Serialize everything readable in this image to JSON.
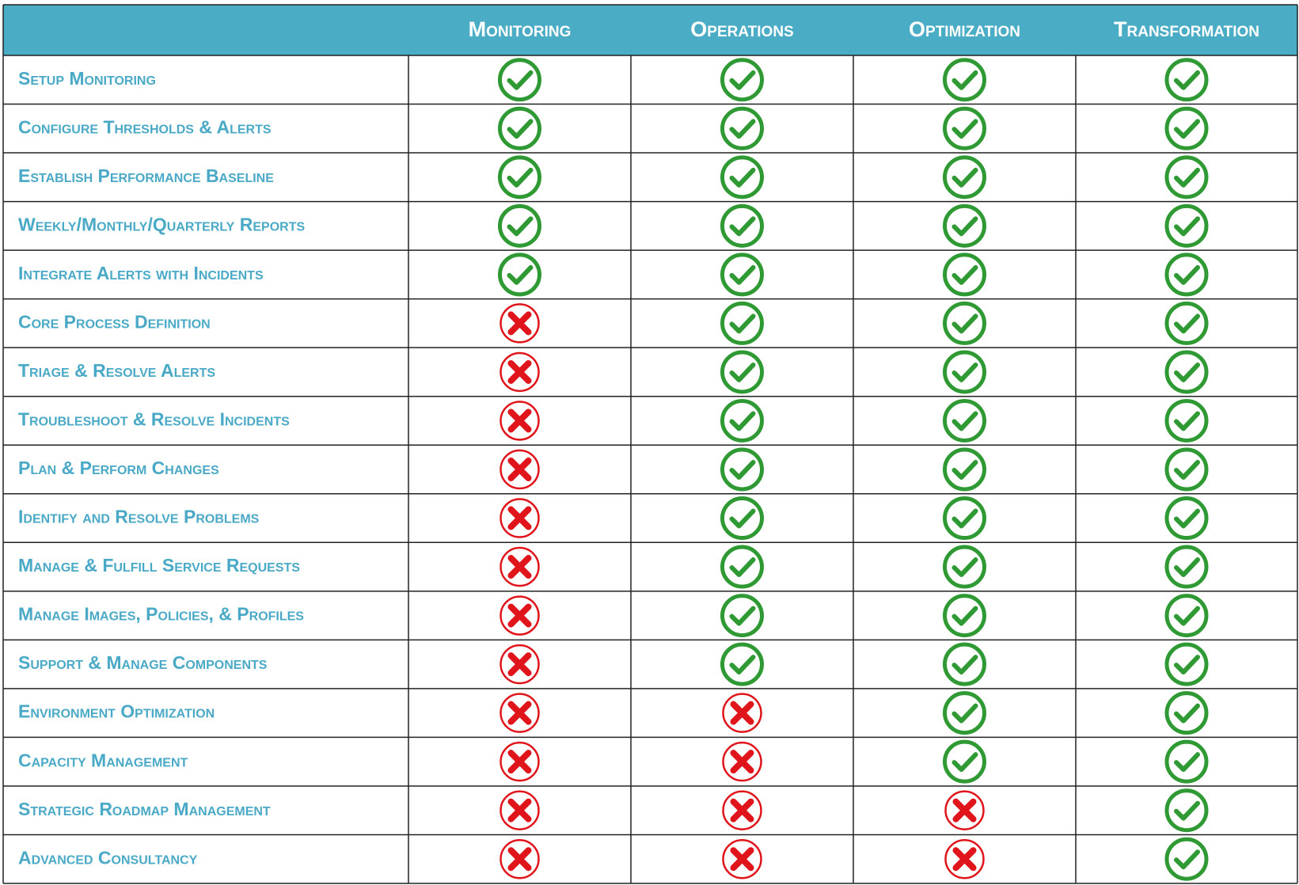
{
  "table": {
    "columns": [
      "Monitoring",
      "Operations",
      "Optimization",
      "Transformation"
    ],
    "rows": [
      {
        "label": "Setup Monitoring",
        "included": [
          true,
          true,
          true,
          true
        ]
      },
      {
        "label": "Configure Thresholds & Alerts",
        "included": [
          true,
          true,
          true,
          true
        ]
      },
      {
        "label": "Establish Performance Baseline",
        "included": [
          true,
          true,
          true,
          true
        ]
      },
      {
        "label": "Weekly/Monthly/Quarterly Reports",
        "included": [
          true,
          true,
          true,
          true
        ]
      },
      {
        "label": "Integrate Alerts with Incidents",
        "included": [
          true,
          true,
          true,
          true
        ]
      },
      {
        "label": "Core Process Definition",
        "included": [
          false,
          true,
          true,
          true
        ]
      },
      {
        "label": "Triage & Resolve Alerts",
        "included": [
          false,
          true,
          true,
          true
        ]
      },
      {
        "label": "Troubleshoot & Resolve Incidents",
        "included": [
          false,
          true,
          true,
          true
        ]
      },
      {
        "label": "Plan & Perform Changes",
        "included": [
          false,
          true,
          true,
          true
        ]
      },
      {
        "label": "Identify and Resolve Problems",
        "included": [
          false,
          true,
          true,
          true
        ]
      },
      {
        "label": "Manage & Fulfill Service Requests",
        "included": [
          false,
          true,
          true,
          true
        ]
      },
      {
        "label": "Manage Images, Policies, & Profiles",
        "included": [
          false,
          true,
          true,
          true
        ]
      },
      {
        "label": "Support & Manage Components",
        "included": [
          false,
          true,
          true,
          true
        ]
      },
      {
        "label": "Environment Optimization",
        "included": [
          false,
          false,
          true,
          true
        ]
      },
      {
        "label": "Capacity Management",
        "included": [
          false,
          false,
          true,
          true
        ]
      },
      {
        "label": "Strategic Roadmap Management",
        "included": [
          false,
          false,
          false,
          true
        ]
      },
      {
        "label": "Advanced Consultancy",
        "included": [
          false,
          false,
          false,
          true
        ]
      }
    ]
  }
}
